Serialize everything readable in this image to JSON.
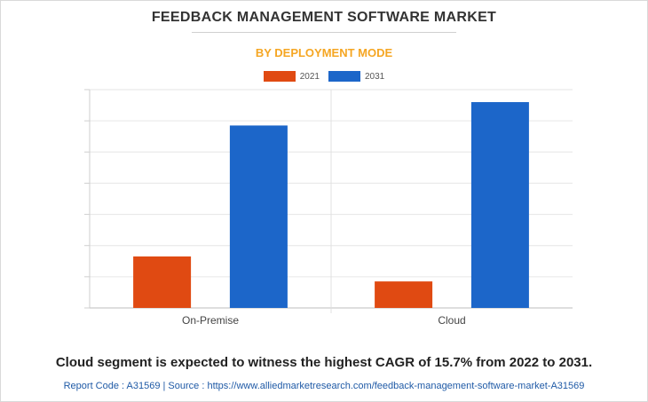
{
  "header": {
    "title": "FEEDBACK MANAGEMENT SOFTWARE MARKET",
    "subtitle": "BY DEPLOYMENT MODE"
  },
  "chart_data": {
    "type": "bar",
    "categories": [
      "On-Premise",
      "Cloud"
    ],
    "series": [
      {
        "name": "2021",
        "color": "#e04a12",
        "values": [
          16.5,
          8.5
        ]
      },
      {
        "name": "2031",
        "color": "#1c66c9",
        "values": [
          58.5,
          66
        ]
      }
    ],
    "ylim": [
      0,
      70
    ],
    "grid": true,
    "legend_position": "top-center"
  },
  "footer": {
    "statement": "Cloud segment is expected to witness the highest CAGR of 15.7% from 2022 to 2031.",
    "source": "Report Code : A31569  |  Source : https://www.alliedmarketresearch.com/feedback-management-software-market-A31569"
  }
}
